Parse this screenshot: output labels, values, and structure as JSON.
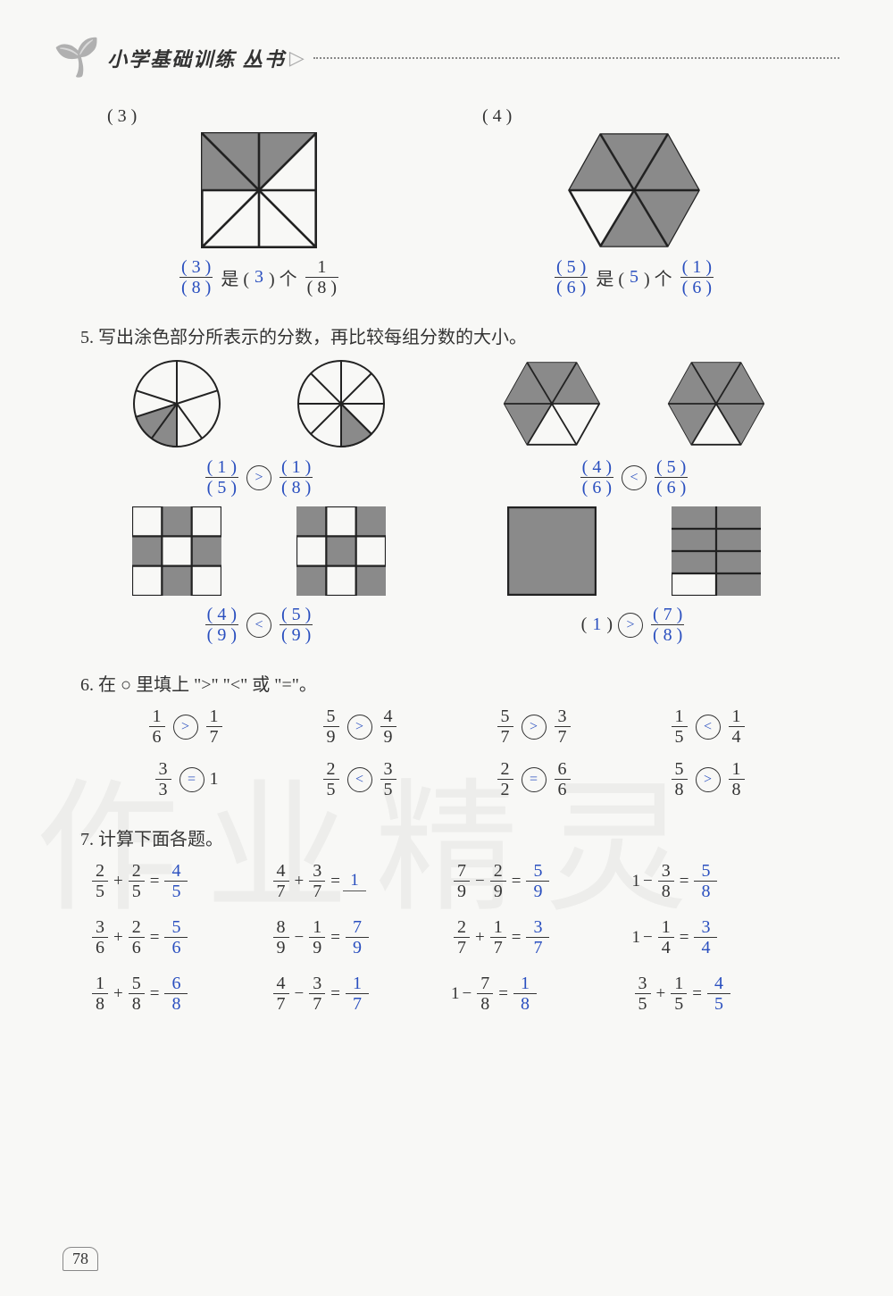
{
  "header": {
    "title": "小学基础训练 丛书"
  },
  "q34": {
    "left": {
      "label": "( 3 )",
      "frac_num": "( 3 )",
      "frac_den": "( 8 )",
      "txt1": "是 (",
      "count": "3",
      "txt2": ") 个",
      "unit_num": "1",
      "unit_den": "( 8 )"
    },
    "right": {
      "label": "( 4 )",
      "frac_num": "( 5 )",
      "frac_den": "( 6 )",
      "txt1": "是 (",
      "count": "5",
      "txt2": ") 个",
      "unit_num": "( 1 )",
      "unit_den": "( 6 )"
    }
  },
  "q5": {
    "title": "5. 写出涂色部分所表示的分数，再比较每组分数的大小。",
    "pairs": [
      {
        "a_num": "( 1 )",
        "a_den": "( 5 )",
        "op": ">",
        "b_num": "( 1 )",
        "b_den": "( 8 )"
      },
      {
        "a_num": "( 4 )",
        "a_den": "( 6 )",
        "op": "<",
        "b_num": "( 5 )",
        "b_den": "( 6 )"
      },
      {
        "a_num": "( 4 )",
        "a_den": "( 9 )",
        "op": "<",
        "b_num": "( 5 )",
        "b_den": "( 9 )"
      },
      {
        "a_num": "( 1 )",
        "a_den": "",
        "op": ">",
        "b_num": "( 7 )",
        "b_den": "( 8 )",
        "a_plain": "1"
      }
    ]
  },
  "q6": {
    "title": "6. 在 ○ 里填上 \">\" \"<\" 或 \"=\"。",
    "items": [
      {
        "a": "1/6",
        "op": ">",
        "b": "1/7"
      },
      {
        "a": "5/9",
        "op": ">",
        "b": "4/9"
      },
      {
        "a": "5/7",
        "op": ">",
        "b": "3/7"
      },
      {
        "a": "1/5",
        "op": "<",
        "b": "1/4"
      },
      {
        "a": "3/3",
        "op": "=",
        "b": "1"
      },
      {
        "a": "2/5",
        "op": "<",
        "b": "3/5"
      },
      {
        "a": "2/2",
        "op": "=",
        "b": "6/6"
      },
      {
        "a": "5/8",
        "op": ">",
        "b": "1/8"
      }
    ]
  },
  "q7": {
    "title": "7. 计算下面各题。",
    "items": [
      {
        "e": "2/5 + 2/5 =",
        "r": "4/5"
      },
      {
        "e": "4/7 + 3/7 =",
        "r": "1"
      },
      {
        "e": "7/9 − 2/9 =",
        "r": "5/9"
      },
      {
        "e": "1 − 3/8 =",
        "r": "5/8"
      },
      {
        "e": "3/6 + 2/6 =",
        "r": "5/6"
      },
      {
        "e": "8/9 − 1/9 =",
        "r": "7/9"
      },
      {
        "e": "2/7 + 1/7 =",
        "r": "3/7"
      },
      {
        "e": "1 − 1/4 =",
        "r": "3/4"
      },
      {
        "e": "1/8 + 5/8 =",
        "r": "6/8"
      },
      {
        "e": "4/7 − 3/7 =",
        "r": "1/7"
      },
      {
        "e": "1 − 7/8 =",
        "r": "1/8"
      },
      {
        "e": "3/5 + 1/5 =",
        "r": "4/5"
      }
    ]
  },
  "colors": {
    "shade": "#8a8a8a",
    "stroke": "#222",
    "answer": "#2a4fbf"
  },
  "pagenum": "78",
  "watermark": "作业精灵"
}
